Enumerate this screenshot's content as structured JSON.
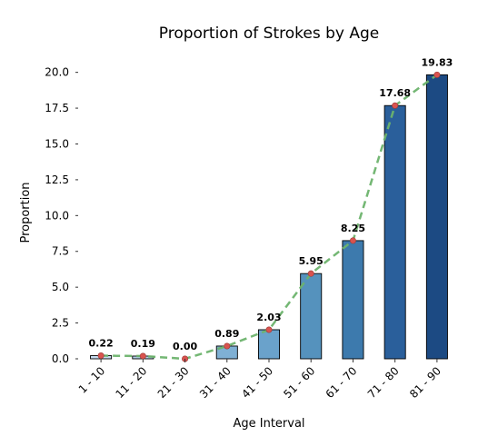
{
  "chart_data": {
    "type": "bar",
    "title": "Proportion of Strokes by Age",
    "xlabel": "Age Interval",
    "ylabel": "Proportion",
    "categories": [
      "1 - 10",
      "11 - 20",
      "21 - 30",
      "31 - 40",
      "41 - 50",
      "51 - 60",
      "61 - 70",
      "71 - 80",
      "81 - 90"
    ],
    "values": [
      0.22,
      0.19,
      0.0,
      0.89,
      2.03,
      5.95,
      8.25,
      17.68,
      19.83
    ],
    "data_labels": [
      "0.22",
      "0.19",
      "0.00",
      "0.89",
      "2.03",
      "5.95",
      "8.25",
      "17.68",
      "19.83"
    ],
    "ylim": [
      0,
      21.5
    ],
    "yticks": [
      0.0,
      2.5,
      5.0,
      7.5,
      10.0,
      12.5,
      15.0,
      17.5,
      20.0
    ],
    "ytick_labels": [
      "0.0",
      "2.5",
      "5.0",
      "7.5",
      "10.0",
      "12.5",
      "15.0",
      "17.5",
      "20.0"
    ],
    "grid": false,
    "overlay_line": {
      "style": "dashed",
      "color": "#6db36d",
      "marker_color": "#d9534f"
    },
    "bar_colors": [
      "#c6dbef",
      "#b0cde4",
      "#9ac0db",
      "#7fb0d4",
      "#6aa2cb",
      "#5592bd",
      "#3d7aad",
      "#2a5f9b",
      "#1c4a83"
    ]
  }
}
